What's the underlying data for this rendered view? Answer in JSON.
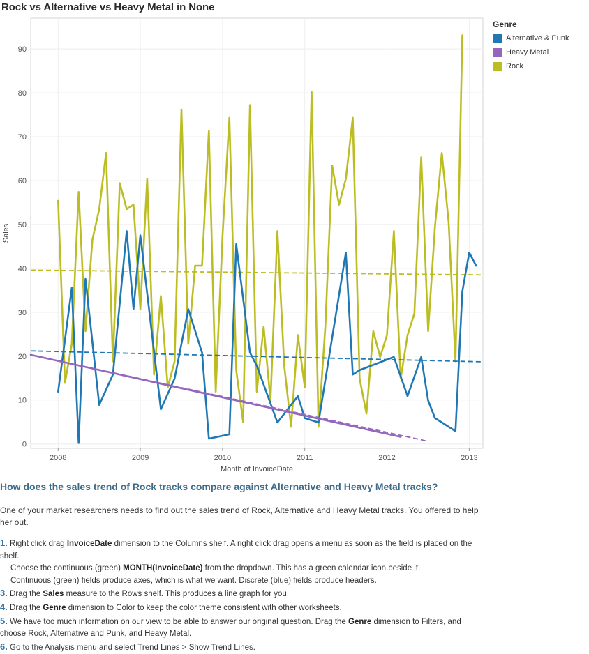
{
  "chart_data": {
    "type": "line",
    "title": "Rock vs Alternative vs Heavy Metal in None",
    "xlabel": "Month of InvoiceDate",
    "ylabel": "Sales",
    "x_ticks": [
      "2008",
      "2009",
      "2010",
      "2011",
      "2012",
      "2013"
    ],
    "y_ticks": [
      0,
      10,
      20,
      30,
      40,
      50,
      60,
      70,
      80,
      90
    ],
    "ylim": [
      -1,
      97
    ],
    "xlim": [
      "2007-09",
      "2013-03"
    ],
    "grid": true,
    "legend_position": "right",
    "legend_title": "Genre",
    "series": [
      {
        "name": "Rock",
        "color": "#bcbd22",
        "points": [
          [
            "2008-01",
            55.4
          ],
          [
            "2008-02",
            13.9
          ],
          [
            "2008-03",
            22.8
          ],
          [
            "2008-04",
            57.4
          ],
          [
            "2008-05",
            25.7
          ],
          [
            "2008-06",
            46.5
          ],
          [
            "2008-07",
            53.5
          ],
          [
            "2008-08",
            66.3
          ],
          [
            "2008-09",
            18.8
          ],
          [
            "2008-10",
            59.4
          ],
          [
            "2008-11",
            53.5
          ],
          [
            "2008-12",
            54.5
          ],
          [
            "2009-01",
            30.7
          ],
          [
            "2009-02",
            60.4
          ],
          [
            "2009-03",
            15.8
          ],
          [
            "2009-04",
            33.7
          ],
          [
            "2009-05",
            12.9
          ],
          [
            "2009-06",
            18.8
          ],
          [
            "2009-07",
            76.2
          ],
          [
            "2009-08",
            22.8
          ],
          [
            "2009-09",
            40.6
          ],
          [
            "2009-10",
            40.6
          ],
          [
            "2009-11",
            71.3
          ],
          [
            "2009-12",
            11.9
          ],
          [
            "2010-01",
            47.5
          ],
          [
            "2010-02",
            74.3
          ],
          [
            "2010-03",
            16.8
          ],
          [
            "2010-04",
            5.0
          ],
          [
            "2010-05",
            77.2
          ],
          [
            "2010-06",
            11.9
          ],
          [
            "2010-07",
            26.7
          ],
          [
            "2010-08",
            9.9
          ],
          [
            "2010-09",
            48.5
          ],
          [
            "2010-10",
            17.8
          ],
          [
            "2010-11",
            3.9
          ],
          [
            "2010-12",
            24.8
          ],
          [
            "2011-01",
            12.9
          ],
          [
            "2011-02",
            80.2
          ],
          [
            "2011-03",
            3.9
          ],
          [
            "2011-04",
            26.7
          ],
          [
            "2011-05",
            63.4
          ],
          [
            "2011-06",
            54.5
          ],
          [
            "2011-07",
            60.4
          ],
          [
            "2011-08",
            74.3
          ],
          [
            "2011-09",
            14.9
          ],
          [
            "2011-10",
            6.9
          ],
          [
            "2011-11",
            25.7
          ],
          [
            "2011-12",
            19.8
          ],
          [
            "2012-01",
            24.8
          ],
          [
            "2012-02",
            48.5
          ],
          [
            "2012-03",
            14.9
          ],
          [
            "2012-04",
            24.8
          ],
          [
            "2012-05",
            29.7
          ],
          [
            "2012-06",
            65.3
          ],
          [
            "2012-07",
            25.7
          ],
          [
            "2012-08",
            49.5
          ],
          [
            "2012-09",
            66.3
          ],
          [
            "2012-10",
            50.5
          ],
          [
            "2012-11",
            18.8
          ],
          [
            "2012-12",
            93.1
          ]
        ],
        "trend": [
          [
            "2007-09",
            39.6
          ],
          [
            "2013-03",
            38.5
          ]
        ]
      },
      {
        "name": "Alternative & Punk",
        "color": "#1f77b4",
        "points": [
          [
            "2008-01",
            11.9
          ],
          [
            "2008-03",
            35.6
          ],
          [
            "2008-04",
            0.2
          ],
          [
            "2008-05",
            37.6
          ],
          [
            "2008-07",
            8.9
          ],
          [
            "2008-09",
            15.8
          ],
          [
            "2008-11",
            48.5
          ],
          [
            "2008-12",
            30.7
          ],
          [
            "2009-01",
            47.5
          ],
          [
            "2009-04",
            7.9
          ],
          [
            "2009-06",
            14.9
          ],
          [
            "2009-08",
            30.7
          ],
          [
            "2009-10",
            20.8
          ],
          [
            "2009-11",
            1.2
          ],
          [
            "2010-02",
            2.2
          ],
          [
            "2010-03",
            45.5
          ],
          [
            "2010-05",
            20.8
          ],
          [
            "2010-06",
            17.8
          ],
          [
            "2010-09",
            4.9
          ],
          [
            "2010-12",
            10.9
          ],
          [
            "2011-01",
            5.9
          ],
          [
            "2011-03",
            4.9
          ],
          [
            "2011-07",
            43.6
          ],
          [
            "2011-08",
            15.8
          ],
          [
            "2011-09",
            16.8
          ],
          [
            "2012-02",
            19.8
          ],
          [
            "2012-04",
            10.9
          ],
          [
            "2012-06",
            19.8
          ],
          [
            "2012-07",
            9.9
          ],
          [
            "2012-08",
            5.9
          ],
          [
            "2012-11",
            2.9
          ],
          [
            "2012-12",
            34.7
          ],
          [
            "2013-01",
            43.6
          ],
          [
            "2013-02",
            40.6
          ]
        ],
        "trend": [
          [
            "2007-09",
            21.2
          ],
          [
            "2013-03",
            18.7
          ]
        ]
      },
      {
        "name": "Heavy Metal",
        "color": "#9467bd",
        "points": [
          [
            "2007-09",
            20.3
          ],
          [
            "2012-03",
            1.6
          ]
        ],
        "trend": [
          [
            "2007-09",
            20.3
          ],
          [
            "2012-07",
            0.6
          ]
        ]
      }
    ]
  },
  "question": "How does the sales trend of Rock tracks compare against Alternative and Heavy Metal tracks?",
  "intro": "One of your market researchers needs to find out the sales trend of Rock, Alternative and Heavy Metal tracks. You offered to help her out.",
  "steps": [
    {
      "num": "1.",
      "parts": [
        "Right click drag ",
        "InvoiceDate",
        " dimension to the Columns shelf. A right click drag opens a menu as soon as the field is placed on the shelf."
      ]
    },
    {
      "num": "",
      "parts": [
        "Choose the continuous (green) ",
        "MONTH(InvoiceDate)",
        " from the dropdown. This has a green calendar icon beside it."
      ]
    },
    {
      "num": "",
      "parts": [
        "Continuous (green) fields produce axes, which is what we want. Discrete (blue) fields produce headers.",
        "",
        ""
      ]
    },
    {
      "num": "3.",
      "parts": [
        "Drag the ",
        "Sales",
        " measure to the Rows shelf. This produces a line graph for you."
      ]
    },
    {
      "num": "4.",
      "parts": [
        "Drag the ",
        "Genre",
        " dimension to Color to keep the color theme consistent with other worksheets."
      ]
    },
    {
      "num": "5.",
      "parts": [
        " We have too much information on our view to be able to answer our original question. Drag the ",
        "Genre",
        " dimension to Filters, and choose Rock, Alternative and Punk, and Heavy Metal."
      ]
    },
    {
      "num": "6.",
      "parts": [
        "Go to the Analysis menu and select Trend Lines > Show Trend Lines.",
        "",
        ""
      ]
    }
  ]
}
